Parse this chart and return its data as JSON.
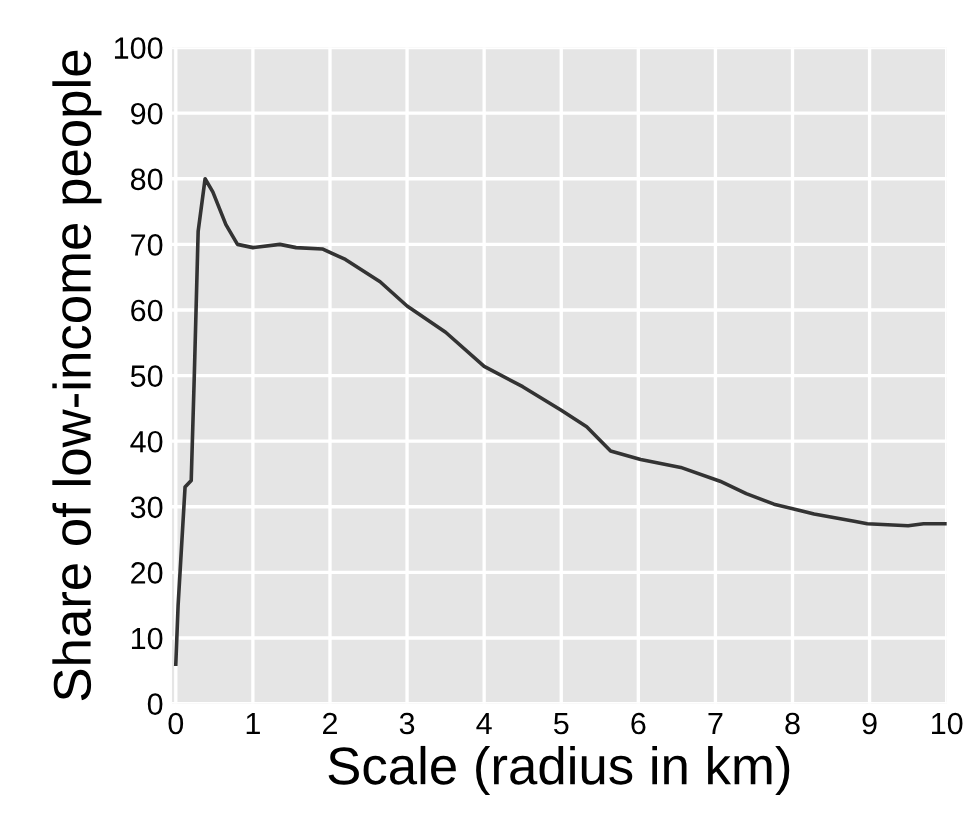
{
  "chart_data": {
    "type": "line",
    "xlabel": "Scale (radius in km)",
    "ylabel": "Share of low-income people",
    "series": [
      {
        "color": "#333333",
        "x": [
          0,
          0.03,
          0.12,
          0.2,
          0.24,
          0.29,
          0.38,
          0.48,
          0.65,
          0.8,
          1.0,
          1.35,
          1.56,
          1.9,
          2.2,
          2.65,
          3.0,
          3.5,
          4.0,
          4.5,
          5.0,
          5.33,
          5.64,
          6.03,
          6.55,
          7.06,
          7.4,
          7.76,
          8.28,
          8.8,
          8.97,
          9.5,
          9.7,
          10
        ],
        "values": [
          6,
          15,
          33,
          34,
          50,
          72,
          80,
          78,
          73,
          70,
          69.5,
          70,
          69.5,
          69.3,
          67.7,
          64.3,
          60.6,
          56.6,
          51.4,
          48.3,
          44.7,
          42.2,
          38.5,
          37.2,
          36,
          33.9,
          32,
          30.4,
          28.9,
          27.8,
          27.4,
          27.1,
          27.4,
          27.4
        ]
      }
    ],
    "xlim": [
      -0.05,
      10
    ],
    "ylim": [
      0,
      100
    ],
    "xticks": [
      0,
      1,
      2,
      3,
      4,
      5,
      6,
      7,
      8,
      9,
      10
    ],
    "yticks": [
      0,
      10,
      20,
      30,
      40,
      50,
      60,
      70,
      80,
      90,
      100
    ],
    "grid": true,
    "marker": "none",
    "line_style": "solid"
  }
}
